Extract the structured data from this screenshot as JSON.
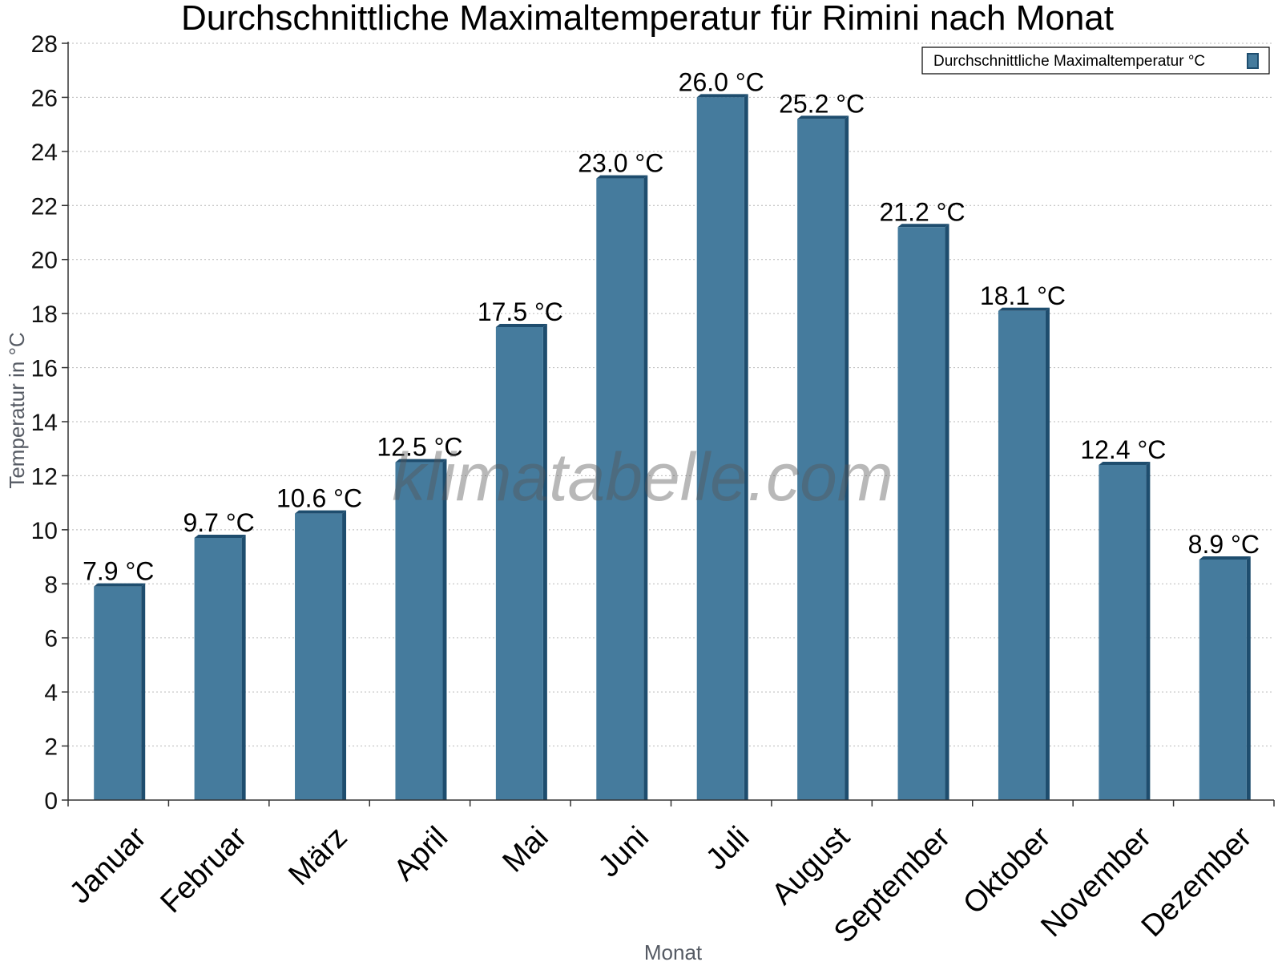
{
  "watermark": "klimatabelle.com",
  "chart_data": {
    "type": "bar",
    "title": "Durchschnittliche Maximaltemperatur für Rimini nach Monat",
    "xlabel": "Monat",
    "ylabel": "Temperatur in °C",
    "ylim": [
      0,
      28
    ],
    "ytick_step": 2,
    "yticks": [
      "0",
      "2",
      "4",
      "6",
      "8",
      "10",
      "12",
      "14",
      "16",
      "18",
      "20",
      "22",
      "24",
      "26",
      "28"
    ],
    "grid": true,
    "legend_position": "top-right",
    "categories": [
      "Januar",
      "Februar",
      "März",
      "April",
      "Mai",
      "Juni",
      "Juli",
      "August",
      "September",
      "Oktober",
      "November",
      "Dezember"
    ],
    "series": [
      {
        "name": "Durchschnittliche Maximaltemperatur °C",
        "color": "#457b9d",
        "edge_color": "#1e4d6e",
        "values": [
          7.9,
          9.7,
          10.6,
          12.5,
          17.5,
          23.0,
          26.0,
          25.2,
          21.2,
          18.1,
          12.4,
          8.9
        ],
        "data_labels": [
          "7.9 °C",
          "9.7 °C",
          "10.6 °C",
          "12.5 °C",
          "17.5 °C",
          "23.0 °C",
          "26.0 °C",
          "25.2 °C",
          "21.2 °C",
          "18.1 °C",
          "12.4 °C",
          "8.9 °C"
        ]
      }
    ]
  }
}
